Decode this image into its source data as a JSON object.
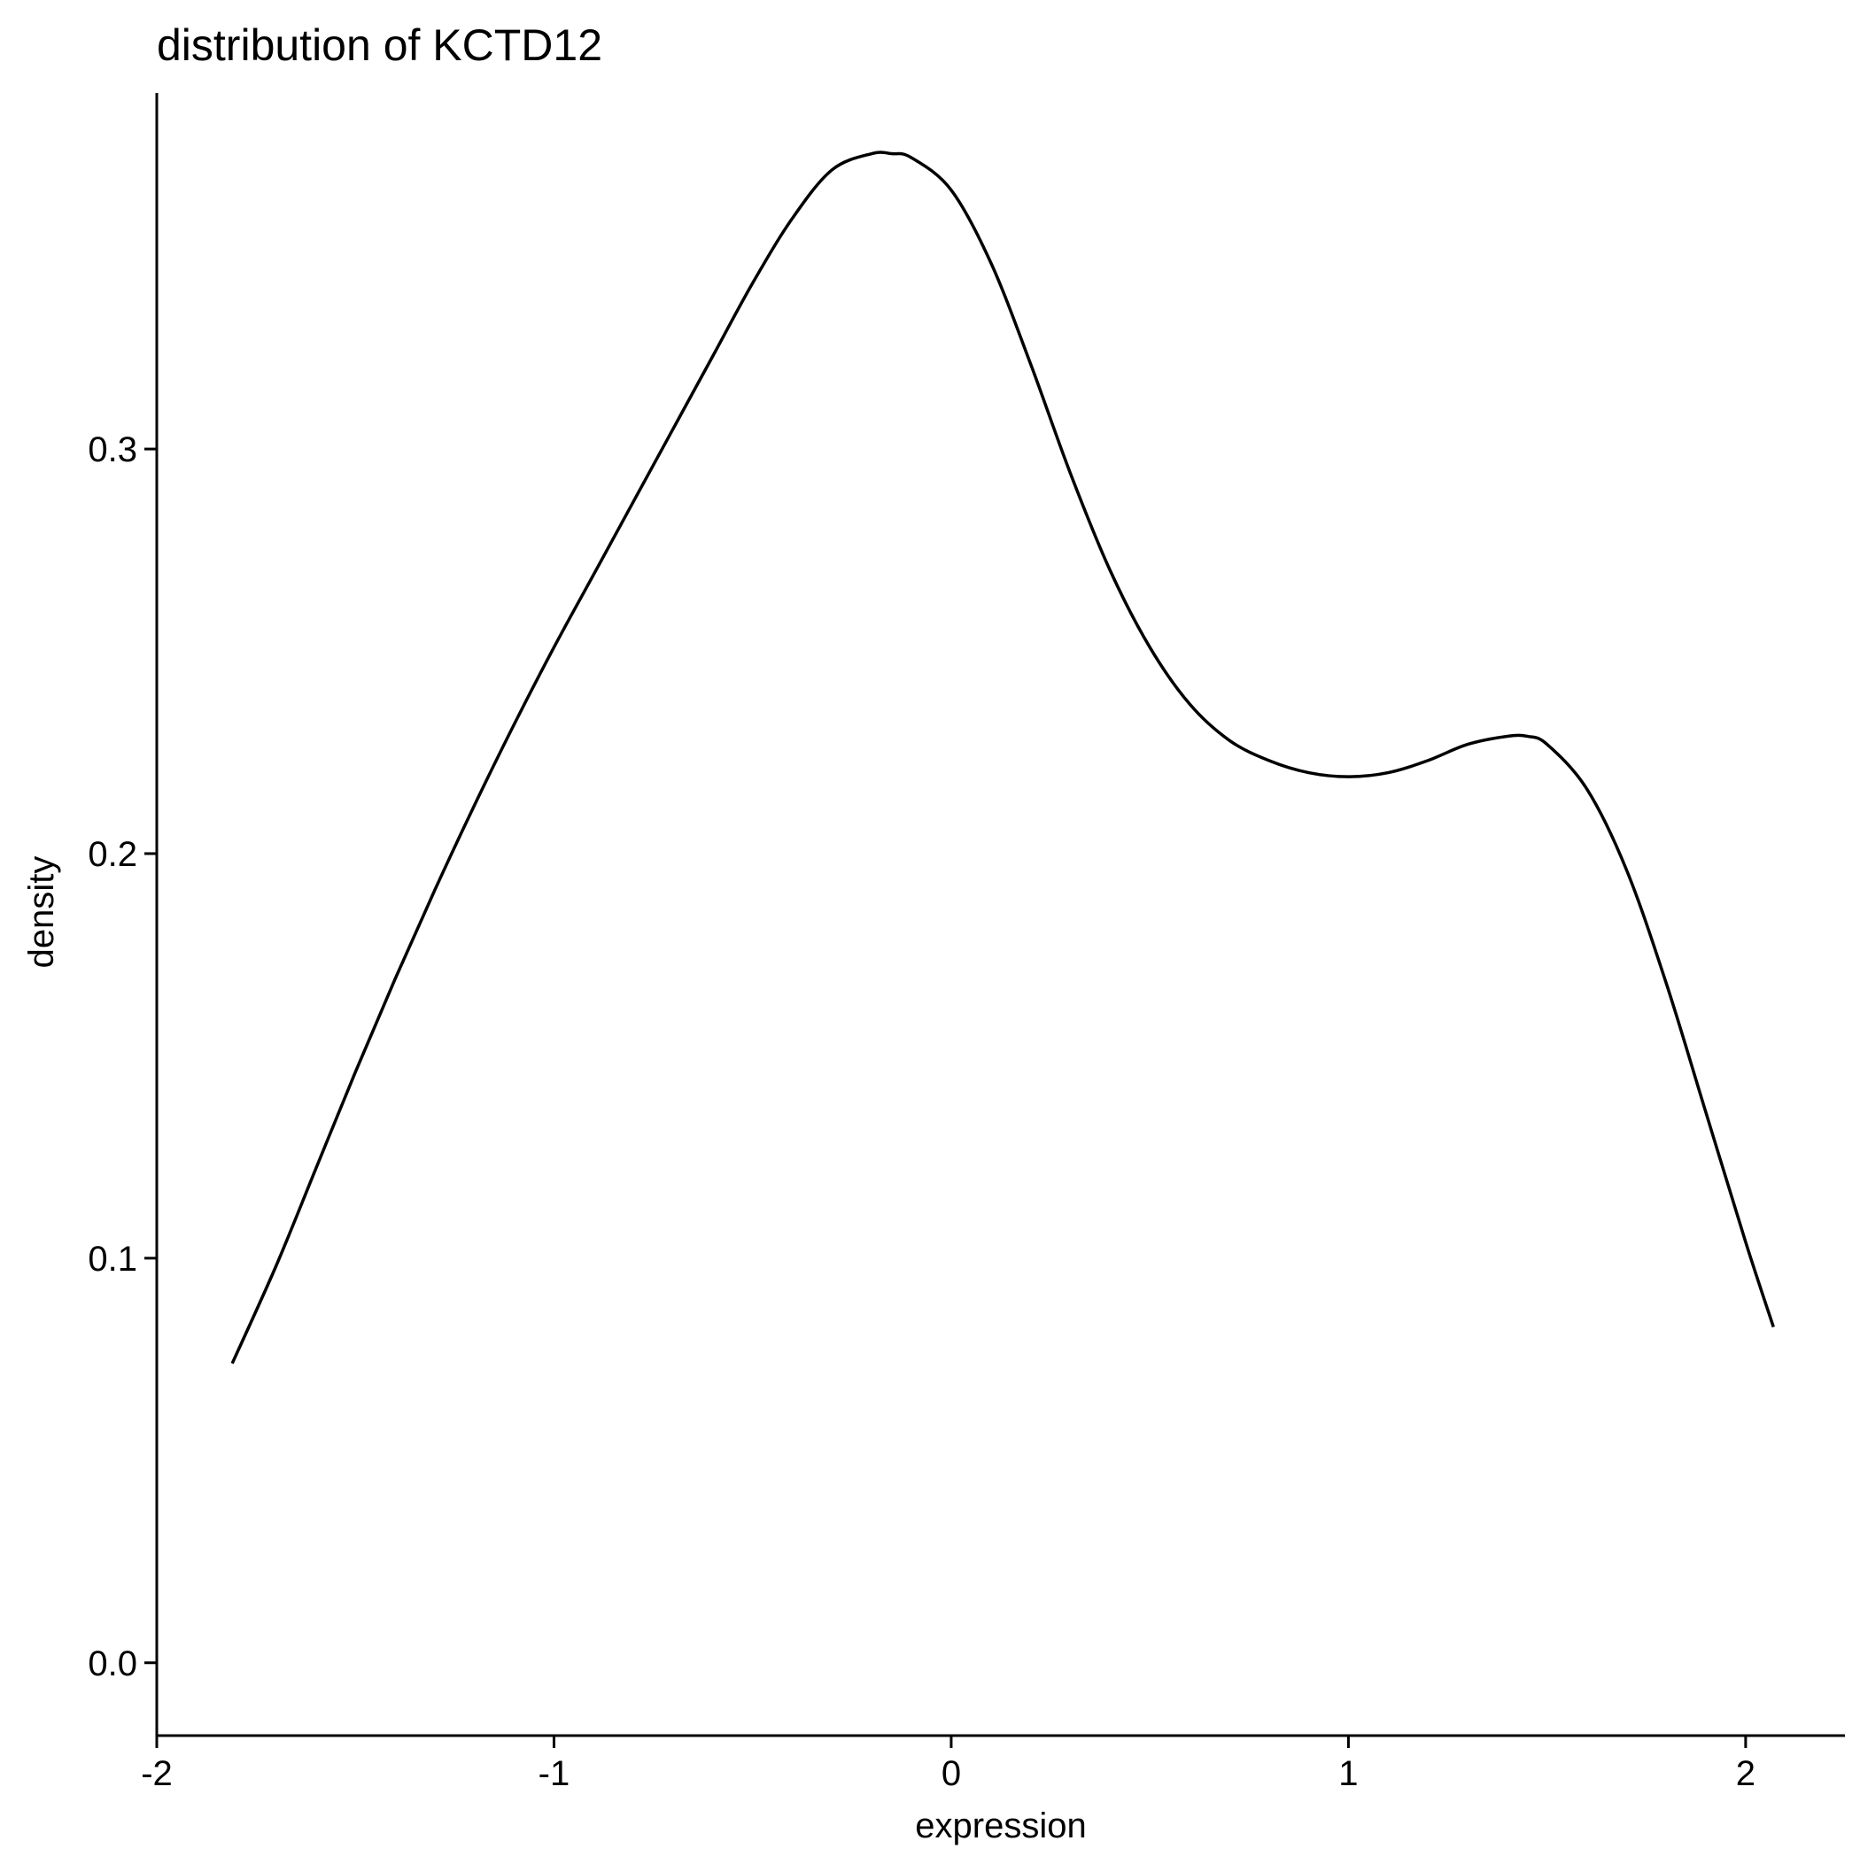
{
  "chart_data": {
    "type": "line",
    "title": "distribution of KCTD12",
    "xlabel": "expression",
    "ylabel": "density",
    "xlim": [
      -2.0,
      2.25
    ],
    "ylim": [
      -0.018,
      0.388
    ],
    "x_ticks": [
      -2,
      -1,
      0,
      1,
      2
    ],
    "x_tick_labels": [
      "-2",
      "-1",
      "0",
      "1",
      "2"
    ],
    "y_ticks": [
      0.0,
      0.1,
      0.2,
      0.3
    ],
    "y_tick_labels": [
      "0.0",
      "0.1",
      "0.2",
      "0.3"
    ],
    "grid": false,
    "legend": "none",
    "line_color": "#000000",
    "series": [
      {
        "x": [
          -1.81,
          -1.7,
          -1.6,
          -1.5,
          -1.4,
          -1.3,
          -1.2,
          -1.1,
          -1.0,
          -0.9,
          -0.8,
          -0.7,
          -0.6,
          -0.5,
          -0.4,
          -0.3,
          -0.2,
          -0.15,
          -0.1,
          0.0,
          0.1,
          0.2,
          0.3,
          0.4,
          0.5,
          0.6,
          0.7,
          0.8,
          0.9,
          1.0,
          1.1,
          1.2,
          1.3,
          1.4,
          1.45,
          1.5,
          1.6,
          1.7,
          1.8,
          1.9,
          2.0,
          2.07
        ],
        "y": [
          0.074,
          0.098,
          0.122,
          0.146,
          0.169,
          0.191,
          0.212,
          0.232,
          0.251,
          0.269,
          0.287,
          0.305,
          0.323,
          0.341,
          0.357,
          0.369,
          0.373,
          0.373,
          0.372,
          0.364,
          0.346,
          0.321,
          0.294,
          0.27,
          0.251,
          0.237,
          0.228,
          0.223,
          0.22,
          0.219,
          0.22,
          0.223,
          0.227,
          0.229,
          0.229,
          0.227,
          0.216,
          0.196,
          0.168,
          0.136,
          0.104,
          0.083
        ]
      }
    ]
  }
}
